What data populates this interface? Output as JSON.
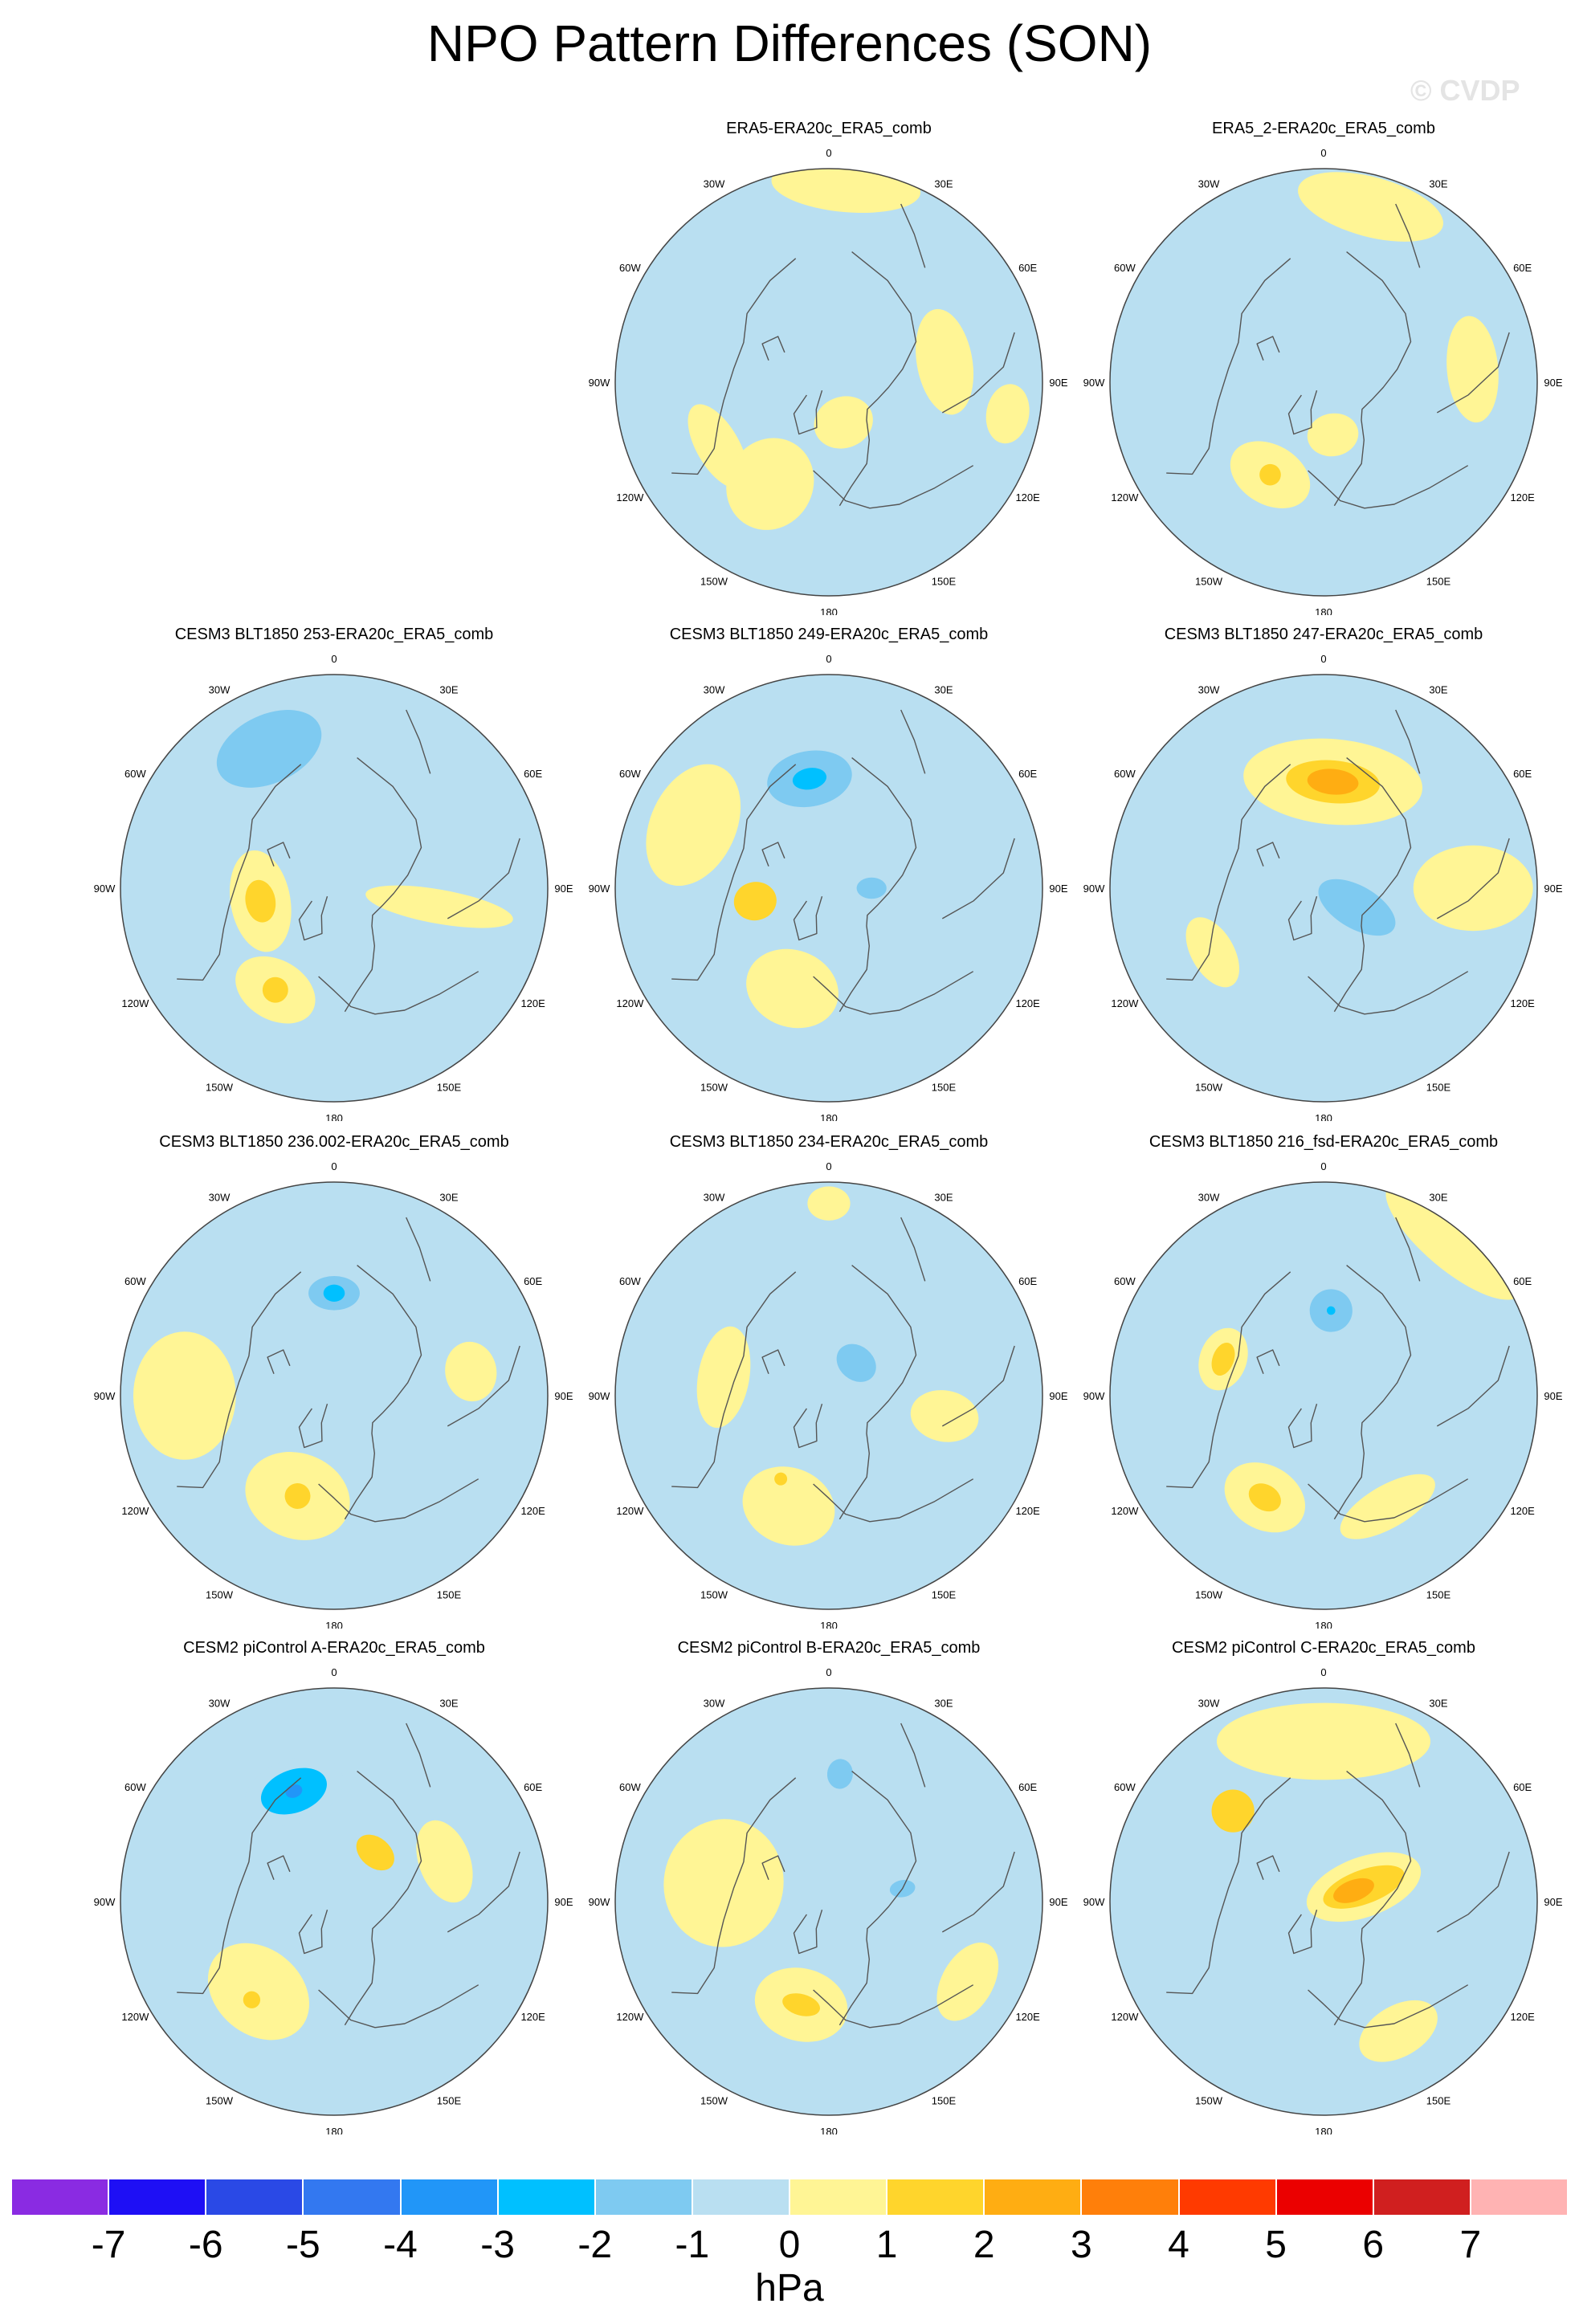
{
  "page": {
    "title": "NPO Pattern Differences (SON)",
    "watermark": "© CVDP"
  },
  "map_style": {
    "projection": "north polar stereographic",
    "background_color": "#b9dff1",
    "positive_color": "#fff595",
    "coastline_color": "#555555",
    "longitude_labels": [
      "180",
      "150E",
      "120E",
      "90E",
      "60E",
      "30E",
      "0",
      "30W",
      "60W",
      "90W",
      "120W",
      "150W"
    ]
  },
  "panels": [
    {
      "title": "ERA5-ERA20c_ERA5_comb",
      "features": [
        {
          "type": "blob",
          "lon": 175,
          "r": 0.92,
          "rx": 0.35,
          "ry": 0.12,
          "level": 1
        },
        {
          "type": "blob",
          "lon": 100,
          "r": 0.55,
          "rx": 0.25,
          "ry": 0.13,
          "level": 1
        },
        {
          "type": "blob",
          "lon": 80,
          "r": 0.85,
          "rx": 0.14,
          "ry": 0.1,
          "level": 1
        },
        {
          "type": "blob",
          "lon": 300,
          "r": 0.6,
          "rx": 0.22,
          "ry": 0.1,
          "level": 1
        },
        {
          "type": "blob",
          "lon": 330,
          "r": 0.55,
          "rx": 0.2,
          "ry": 0.22,
          "level": 1
        },
        {
          "type": "blob",
          "lon": 20,
          "r": 0.2,
          "rx": 0.14,
          "ry": 0.12,
          "level": 1
        }
      ]
    },
    {
      "title": "ERA5_2-ERA20c_ERA5_comb",
      "features": [
        {
          "type": "blob",
          "lon": 165,
          "r": 0.85,
          "rx": 0.35,
          "ry": 0.14,
          "level": 1
        },
        {
          "type": "blob",
          "lon": 95,
          "r": 0.7,
          "rx": 0.25,
          "ry": 0.12,
          "level": 1
        },
        {
          "type": "blob",
          "lon": 330,
          "r": 0.5,
          "rx": 0.2,
          "ry": 0.14,
          "level": 1
        },
        {
          "type": "blob",
          "lon": 330,
          "r": 0.5,
          "rx": 0.05,
          "ry": 0.05,
          "level": 2
        },
        {
          "type": "blob",
          "lon": 10,
          "r": 0.25,
          "rx": 0.12,
          "ry": 0.1,
          "level": 1
        }
      ]
    },
    {
      "title": "CESM3 BLT1850 253-ERA20c_ERA5_comb",
      "features": [
        {
          "type": "blob",
          "lon": 205,
          "r": 0.72,
          "rx": 0.26,
          "ry": 0.16,
          "level": -2
        },
        {
          "type": "blob",
          "lon": 280,
          "r": 0.35,
          "rx": 0.24,
          "ry": 0.14,
          "level": 1
        },
        {
          "type": "blob",
          "lon": 280,
          "r": 0.35,
          "rx": 0.1,
          "ry": 0.07,
          "level": 2
        },
        {
          "type": "blob",
          "lon": 330,
          "r": 0.55,
          "rx": 0.2,
          "ry": 0.14,
          "level": 1
        },
        {
          "type": "blob",
          "lon": 330,
          "r": 0.55,
          "rx": 0.06,
          "ry": 0.06,
          "level": 2
        },
        {
          "type": "blob",
          "lon": 80,
          "r": 0.5,
          "rx": 0.08,
          "ry": 0.35,
          "level": 1
        }
      ]
    },
    {
      "title": "CESM3 BLT1850 249-ERA20c_ERA5_comb",
      "features": [
        {
          "type": "blob",
          "lon": 245,
          "r": 0.7,
          "rx": 0.3,
          "ry": 0.2,
          "level": 1
        },
        {
          "type": "blob",
          "lon": 190,
          "r": 0.52,
          "rx": 0.2,
          "ry": 0.13,
          "level": -2
        },
        {
          "type": "blob",
          "lon": 190,
          "r": 0.52,
          "rx": 0.08,
          "ry": 0.05,
          "level": -3
        },
        {
          "type": "blob",
          "lon": 280,
          "r": 0.35,
          "rx": 0.09,
          "ry": 0.1,
          "level": 2
        },
        {
          "type": "blob",
          "lon": 340,
          "r": 0.5,
          "rx": 0.22,
          "ry": 0.18,
          "level": 1
        },
        {
          "type": "blob",
          "lon": 90,
          "r": 0.2,
          "rx": 0.05,
          "ry": 0.07,
          "level": -2
        }
      ]
    },
    {
      "title": "CESM3 BLT1850 247-ERA20c_ERA5_comb",
      "features": [
        {
          "type": "blob",
          "lon": 175,
          "r": 0.5,
          "rx": 0.42,
          "ry": 0.2,
          "level": 1
        },
        {
          "type": "blob",
          "lon": 175,
          "r": 0.5,
          "rx": 0.22,
          "ry": 0.1,
          "level": 2
        },
        {
          "type": "blob",
          "lon": 175,
          "r": 0.5,
          "rx": 0.12,
          "ry": 0.06,
          "level": 3
        },
        {
          "type": "blob",
          "lon": 60,
          "r": 0.18,
          "rx": 0.1,
          "ry": 0.2,
          "level": -2
        },
        {
          "type": "blob",
          "lon": 300,
          "r": 0.6,
          "rx": 0.18,
          "ry": 0.1,
          "level": 1
        },
        {
          "type": "blob",
          "lon": 90,
          "r": 0.7,
          "rx": 0.2,
          "ry": 0.28,
          "level": 1
        }
      ]
    },
    {
      "title": "CESM3 BLT1850 236.002-ERA20c_ERA5_comb",
      "features": [
        {
          "type": "blob",
          "lon": 270,
          "r": 0.7,
          "rx": 0.3,
          "ry": 0.24,
          "level": 1
        },
        {
          "type": "blob",
          "lon": 180,
          "r": 0.48,
          "rx": 0.22,
          "ry": 0.14,
          "level": -1
        },
        {
          "type": "blob",
          "lon": 180,
          "r": 0.48,
          "rx": 0.12,
          "ry": 0.08,
          "level": -2
        },
        {
          "type": "blob",
          "lon": 180,
          "r": 0.48,
          "rx": 0.05,
          "ry": 0.04,
          "level": -3
        },
        {
          "type": "blob",
          "lon": 330,
          "r": 0.4,
          "rx": 0.08,
          "ry": 0.06,
          "level": 2
        },
        {
          "type": "blob",
          "lon": 340,
          "r": 0.5,
          "rx": 0.25,
          "ry": 0.2,
          "level": 1
        },
        {
          "type": "blob",
          "lon": 340,
          "r": 0.5,
          "rx": 0.06,
          "ry": 0.06,
          "level": 2
        },
        {
          "type": "blob",
          "lon": 100,
          "r": 0.65,
          "rx": 0.14,
          "ry": 0.12,
          "level": 1
        }
      ]
    },
    {
      "title": "CESM3 BLT1850 234-ERA20c_ERA5_comb",
      "features": [
        {
          "type": "blob",
          "lon": 180,
          "r": 0.9,
          "rx": 0.1,
          "ry": 0.08,
          "level": 1
        },
        {
          "type": "blob",
          "lon": 260,
          "r": 0.5,
          "rx": 0.24,
          "ry": 0.12,
          "level": 1
        },
        {
          "type": "blob",
          "lon": 140,
          "r": 0.2,
          "rx": 0.1,
          "ry": 0.08,
          "level": -2
        },
        {
          "type": "blob",
          "lon": 340,
          "r": 0.55,
          "rx": 0.22,
          "ry": 0.18,
          "level": 1
        },
        {
          "type": "blob",
          "lon": 330,
          "r": 0.45,
          "rx": 0.03,
          "ry": 0.03,
          "level": 2
        },
        {
          "type": "blob",
          "lon": 80,
          "r": 0.55,
          "rx": 0.12,
          "ry": 0.16,
          "level": 1
        }
      ]
    },
    {
      "title": "CESM3 BLT1850 216_fsd-ERA20c_ERA5_comb",
      "features": [
        {
          "type": "blob",
          "lon": 140,
          "r": 0.95,
          "rx": 0.4,
          "ry": 0.14,
          "level": 1
        },
        {
          "type": "blob",
          "lon": 175,
          "r": 0.4,
          "rx": 0.1,
          "ry": 0.1,
          "level": -2
        },
        {
          "type": "blob",
          "lon": 175,
          "r": 0.4,
          "rx": 0.02,
          "ry": 0.02,
          "level": -3
        },
        {
          "type": "blob",
          "lon": 250,
          "r": 0.5,
          "rx": 0.15,
          "ry": 0.11,
          "level": 1
        },
        {
          "type": "blob",
          "lon": 250,
          "r": 0.5,
          "rx": 0.08,
          "ry": 0.05,
          "level": 2
        },
        {
          "type": "blob",
          "lon": 330,
          "r": 0.55,
          "rx": 0.2,
          "ry": 0.15,
          "level": 1
        },
        {
          "type": "blob",
          "lon": 330,
          "r": 0.55,
          "rx": 0.08,
          "ry": 0.06,
          "level": 2
        },
        {
          "type": "blob",
          "lon": 30,
          "r": 0.6,
          "rx": 0.25,
          "ry": 0.1,
          "level": 1
        }
      ]
    },
    {
      "title": "CESM2 piControl A-ERA20c_ERA5_comb",
      "features": [
        {
          "type": "blob",
          "lon": 200,
          "r": 0.55,
          "rx": 0.24,
          "ry": 0.15,
          "level": -1
        },
        {
          "type": "blob",
          "lon": 200,
          "r": 0.55,
          "rx": 0.16,
          "ry": 0.1,
          "level": -3
        },
        {
          "type": "blob",
          "lon": 200,
          "r": 0.55,
          "rx": 0.04,
          "ry": 0.03,
          "level": -4
        },
        {
          "type": "blob",
          "lon": 140,
          "r": 0.3,
          "rx": 0.1,
          "ry": 0.07,
          "level": 2
        },
        {
          "type": "blob",
          "lon": 320,
          "r": 0.55,
          "rx": 0.26,
          "ry": 0.2,
          "level": 1
        },
        {
          "type": "blob",
          "lon": 320,
          "r": 0.6,
          "rx": 0.04,
          "ry": 0.04,
          "level": 2
        },
        {
          "type": "blob",
          "lon": 110,
          "r": 0.55,
          "rx": 0.2,
          "ry": 0.12,
          "level": 1
        }
      ]
    },
    {
      "title": "CESM2 piControl B-ERA20c_ERA5_comb",
      "features": [
        {
          "type": "blob",
          "lon": 260,
          "r": 0.5,
          "rx": 0.3,
          "ry": 0.28,
          "level": 1
        },
        {
          "type": "blob",
          "lon": 175,
          "r": 0.6,
          "rx": 0.06,
          "ry": 0.07,
          "level": -2
        },
        {
          "type": "blob",
          "lon": 100,
          "r": 0.35,
          "rx": 0.04,
          "ry": 0.06,
          "level": -2
        },
        {
          "type": "blob",
          "lon": 345,
          "r": 0.5,
          "rx": 0.22,
          "ry": 0.17,
          "level": 1
        },
        {
          "type": "blob",
          "lon": 345,
          "r": 0.5,
          "rx": 0.09,
          "ry": 0.05,
          "level": 2
        },
        {
          "type": "blob",
          "lon": 60,
          "r": 0.75,
          "rx": 0.2,
          "ry": 0.12,
          "level": 1
        }
      ]
    },
    {
      "title": "CESM2 piControl C-ERA20c_ERA5_comb",
      "features": [
        {
          "type": "blob",
          "lon": 180,
          "r": 0.75,
          "rx": 0.5,
          "ry": 0.18,
          "level": 1
        },
        {
          "type": "blob",
          "lon": 225,
          "r": 0.6,
          "rx": 0.1,
          "ry": 0.1,
          "level": 2
        },
        {
          "type": "blob",
          "lon": 110,
          "r": 0.2,
          "rx": 0.14,
          "ry": 0.28,
          "level": 1
        },
        {
          "type": "blob",
          "lon": 110,
          "r": 0.2,
          "rx": 0.08,
          "ry": 0.2,
          "level": 2
        },
        {
          "type": "blob",
          "lon": 110,
          "r": 0.15,
          "rx": 0.05,
          "ry": 0.1,
          "level": 3
        },
        {
          "type": "blob",
          "lon": 30,
          "r": 0.7,
          "rx": 0.2,
          "ry": 0.12,
          "level": 1
        }
      ]
    }
  ],
  "colorbar": {
    "units": "hPa",
    "colors": [
      "#8a2be2",
      "#1e0ff5",
      "#2a49e6",
      "#3378f0",
      "#2196f8",
      "#00c0ff",
      "#7ecaf1",
      "#b9dff1",
      "#fff595",
      "#ffd52c",
      "#ffad12",
      "#ff7f0a",
      "#ff3a00",
      "#eb0000",
      "#d01f1f",
      "#ffb3b3"
    ],
    "labels": [
      "-7",
      "-6",
      "-5",
      "-4",
      "-3",
      "-2",
      "-1",
      "0",
      "1",
      "2",
      "3",
      "4",
      "5",
      "6",
      "7"
    ],
    "level_colors": {
      "-4": "#2196f8",
      "-3": "#00c0ff",
      "-2": "#7ecaf1",
      "-1": "#b9dff1",
      "1": "#fff595",
      "2": "#ffd52c",
      "3": "#ffad12"
    }
  }
}
